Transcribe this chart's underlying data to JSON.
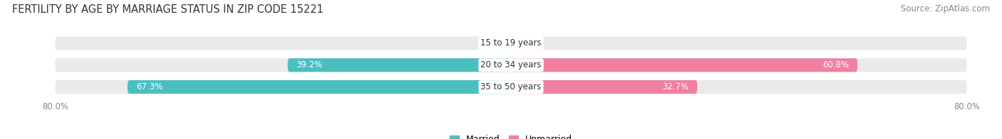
{
  "title": "FERTILITY BY AGE BY MARRIAGE STATUS IN ZIP CODE 15221",
  "source": "Source: ZipAtlas.com",
  "categories": [
    "15 to 19 years",
    "20 to 34 years",
    "35 to 50 years"
  ],
  "married_values": [
    0.0,
    39.2,
    67.3
  ],
  "unmarried_values": [
    0.0,
    60.8,
    32.7
  ],
  "married_color": "#4BBFBF",
  "unmarried_color": "#F080A0",
  "bar_bg_color": "#EAEAEA",
  "xlim": 80.0,
  "bar_height": 0.62,
  "title_fontsize": 10.5,
  "source_fontsize": 8.5,
  "label_fontsize": 8.5,
  "category_fontsize": 8.5,
  "legend_fontsize": 9,
  "value_fontsize": 8.5,
  "bg_color": "#FFFFFF",
  "white_text_threshold": 5.0
}
